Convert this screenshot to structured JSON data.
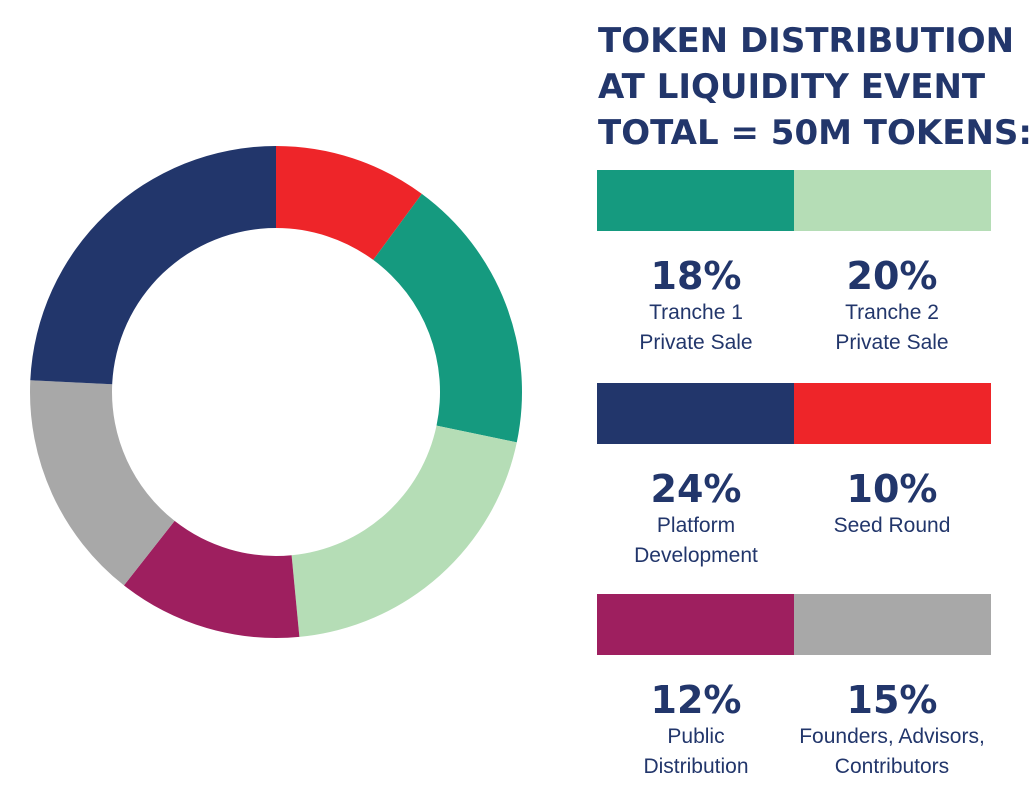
{
  "title_lines": [
    "TOKEN DISTRIBUTION",
    "AT LIQUIDITY EVENT",
    "TOTAL = 50M TOKENS:"
  ],
  "chart_data": {
    "type": "pie",
    "style": "donut",
    "title": "TOKEN DISTRIBUTION AT LIQUIDITY EVENT TOTAL = 50M TOKENS:",
    "unit": "%",
    "slices": [
      {
        "pct": "10%",
        "value": 10,
        "label_lines": [
          "Seed Round"
        ],
        "color": "#ee2529"
      },
      {
        "pct": "18%",
        "value": 18,
        "label_lines": [
          "Tranche 1",
          "Private Sale"
        ],
        "color": "#159a7f"
      },
      {
        "pct": "20%",
        "value": 20,
        "label_lines": [
          "Tranche 2",
          "Private Sale"
        ],
        "color": "#b5ddb6"
      },
      {
        "pct": "12%",
        "value": 12,
        "label_lines": [
          "Public",
          "Distribution"
        ],
        "color": "#9e1f5f"
      },
      {
        "pct": "15%",
        "value": 15,
        "label_lines": [
          "Founders, Advisors,",
          "Contributors"
        ],
        "color": "#a8a8a8"
      },
      {
        "pct": "24%",
        "value": 24,
        "label_lines": [
          "Platform",
          "Development"
        ],
        "color": "#22366b"
      }
    ],
    "legend_order": [
      1,
      2,
      5,
      0,
      3,
      4
    ]
  }
}
